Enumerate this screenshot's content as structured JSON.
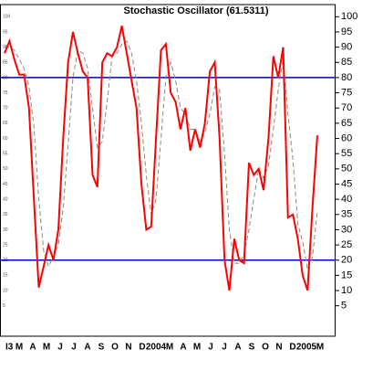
{
  "chart_data": {
    "type": "line",
    "title": "Stochastic Oscillator (61.5311)",
    "x_labels": [
      "I3",
      "M",
      "A",
      "M",
      "J",
      "J",
      "A",
      "S",
      "O",
      "N",
      "D",
      "2004",
      "M",
      "A",
      "M",
      "J",
      "J",
      "A",
      "S",
      "O",
      "N",
      "D",
      "2005",
      "M"
    ],
    "series": [
      {
        "color": "#ff0000",
        "dashed": false,
        "values": [
          88,
          92,
          86,
          81,
          81,
          70,
          40,
          11,
          18,
          25,
          20,
          30,
          60,
          85,
          95,
          88,
          82,
          80,
          48,
          44,
          85,
          88,
          87,
          90,
          97,
          88,
          79,
          70,
          45,
          30,
          31,
          60,
          89,
          91,
          75,
          72,
          63,
          70,
          56,
          63,
          57,
          65,
          82,
          85,
          60,
          20,
          10,
          27,
          20,
          19,
          52,
          48,
          50,
          43,
          60,
          87,
          80,
          90,
          34,
          35,
          27,
          15,
          10,
          37,
          61
        ]
      },
      {
        "color": "#888888",
        "dashed": true,
        "values": [
          90,
          90,
          89,
          86,
          83,
          77,
          64,
          40,
          23,
          18,
          21,
          25,
          37,
          58,
          80,
          89,
          88,
          83,
          70,
          57,
          59,
          72,
          87,
          88,
          91,
          92,
          88,
          79,
          65,
          48,
          35,
          40,
          60,
          80,
          85,
          79,
          70,
          68,
          63,
          63,
          59,
          62,
          68,
          77,
          76,
          55,
          30,
          19,
          19,
          22,
          30,
          40,
          50,
          47,
          51,
          63,
          76,
          86,
          68,
          53,
          32,
          26,
          17,
          21,
          36
        ]
      }
    ],
    "hlines": [
      {
        "value": 80,
        "color": "#0000cc"
      },
      {
        "value": 20,
        "color": "#0000cc"
      }
    ],
    "ylim": [
      -5,
      104
    ],
    "yticks": [
      5,
      10,
      15,
      20,
      25,
      30,
      35,
      40,
      45,
      50,
      55,
      60,
      65,
      70,
      75,
      80,
      85,
      90,
      95,
      100
    ]
  }
}
